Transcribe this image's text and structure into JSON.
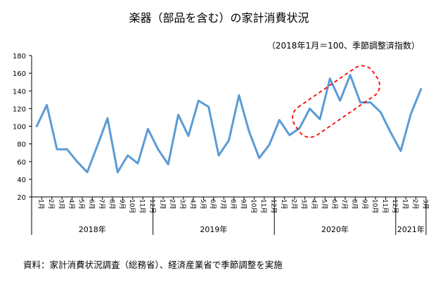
{
  "chart_data": {
    "type": "line",
    "title": "楽器（部品を含む）の家計消費状況",
    "subtitle": "（2018年1月＝100、季節調整済指数）",
    "source": "資料：家計消費状況調査（総務省）、経済産業省で季節調整を実施",
    "ylim": [
      20,
      180
    ],
    "yticks": [
      "20",
      "40",
      "60",
      "80",
      "100",
      "120",
      "140",
      "160",
      "180"
    ],
    "grid": false,
    "line_color": "#5b9bd5",
    "highlight_color": "#ff0000",
    "months": [
      "1月",
      "2月",
      "3月",
      "4月",
      "5月",
      "6月",
      "7月",
      "8月",
      "9月",
      "10月",
      "11月",
      "12月",
      "1月",
      "2月",
      "3月",
      "4月",
      "5月",
      "6月",
      "7月",
      "8月",
      "9月",
      "10月",
      "11月",
      "12月",
      "1月",
      "2月",
      "3月",
      "4月",
      "5月",
      "6月",
      "7月",
      "8月",
      "9月",
      "10月",
      "11月",
      "12月",
      "1月",
      "2月",
      "3月"
    ],
    "years": [
      {
        "label": "2018年",
        "start": 0,
        "count": 12
      },
      {
        "label": "2019年",
        "start": 12,
        "count": 12
      },
      {
        "label": "2020年",
        "start": 24,
        "count": 12
      },
      {
        "label": "2021年",
        "start": 36,
        "count": 3
      }
    ],
    "values": [
      100,
      124,
      74,
      74,
      60,
      48,
      78,
      109,
      48,
      67,
      58,
      97,
      74,
      57,
      113,
      89,
      129,
      122,
      67,
      84,
      135,
      94,
      64,
      79,
      107,
      90,
      98,
      120,
      108,
      154,
      129,
      158,
      127,
      127,
      116,
      93,
      72,
      114,
      142
    ],
    "highlight_range": [
      "2020年4月",
      "2020年9月"
    ]
  }
}
